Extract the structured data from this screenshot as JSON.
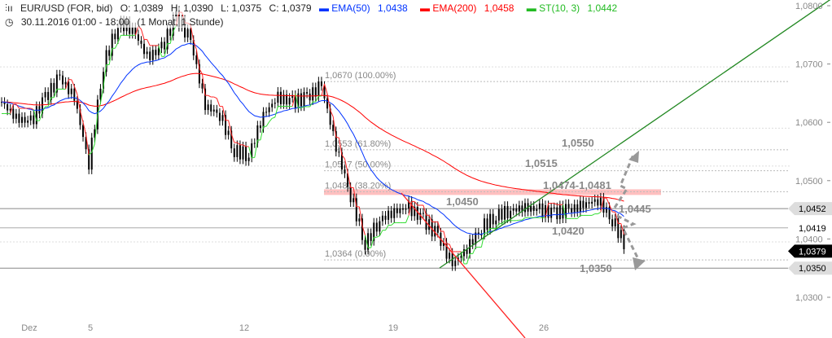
{
  "header": {
    "symbol": "EUR/USD (FOR, bid)",
    "open": "O: 1,0389",
    "high": "H: 1,0390",
    "low": "L: 1,0375",
    "close": "C: 1,0379",
    "ema50_label": "EMA(50)",
    "ema50_value": "1,0438",
    "ema200_label": "EMA(200)",
    "ema200_value": "1,0458",
    "st_label": "ST(10, 3)",
    "st_value": "1,0442",
    "date": "30.11.2016 01:00 - 18:00",
    "period": "(1 Monat, 1 Stunde)"
  },
  "colors": {
    "ema50": "#0033ff",
    "ema200": "#ff0000",
    "st_up": "#33dd33",
    "st_down": "#ff2222",
    "uptrend": "#228822",
    "downtrend": "#ff2222"
  },
  "chart_data": {
    "type": "candlestick",
    "ylim": [
      1.027,
      1.0815
    ],
    "yticks": [
      "1,0300",
      "1,0400",
      "1,0500",
      "1,0600",
      "1,0700",
      "1,0800"
    ],
    "ytick_values": [
      1.03,
      1.04,
      1.05,
      1.06,
      1.07,
      1.08
    ],
    "xticks": [
      "Dez",
      "5",
      "12",
      "19",
      "26"
    ],
    "close_approx": [
      1.0635,
      1.0607,
      1.06,
      1.0642,
      1.0677,
      1.0642,
      1.053,
      1.0698,
      1.0768,
      1.0761,
      1.0712,
      1.0726,
      1.0782,
      1.074,
      1.0628,
      1.0614,
      1.0551,
      1.0544,
      1.0614,
      1.0642,
      1.0635,
      1.0642,
      1.0663,
      1.0558,
      1.0475,
      1.0391,
      1.0433,
      1.0447,
      1.0454,
      1.0433,
      1.0405,
      1.0356,
      1.0384,
      1.0419,
      1.044,
      1.0449,
      1.0454,
      1.0449,
      1.0444,
      1.0449,
      1.0458,
      1.0468,
      1.0433,
      1.0384
    ],
    "fib_levels": [
      {
        "value": 1.067,
        "label": "1,0670 (100.00%)"
      },
      {
        "value": 1.0553,
        "label": "1,0553 (61.80%)"
      },
      {
        "value": 1.0517,
        "label": "1,0517 (50.00%)"
      },
      {
        "value": 1.0481,
        "label": "1,0481 (38.20%)"
      },
      {
        "value": 1.0364,
        "label": "1,0364 (0.00%)"
      }
    ],
    "annotations": [
      "1,0550",
      "1,0515",
      "1,0474-1,0481",
      "1,0450",
      "1,0445",
      "1,0420",
      "1,0350"
    ],
    "price_tags": [
      {
        "value": 1.0452,
        "label": "1,0452",
        "style": "gray"
      },
      {
        "value": 1.0419,
        "label": "1,0419",
        "style": "plain"
      },
      {
        "value": 1.0379,
        "label": "1,0379",
        "style": "black"
      },
      {
        "value": 1.035,
        "label": "1,0350",
        "style": "gray"
      }
    ]
  }
}
